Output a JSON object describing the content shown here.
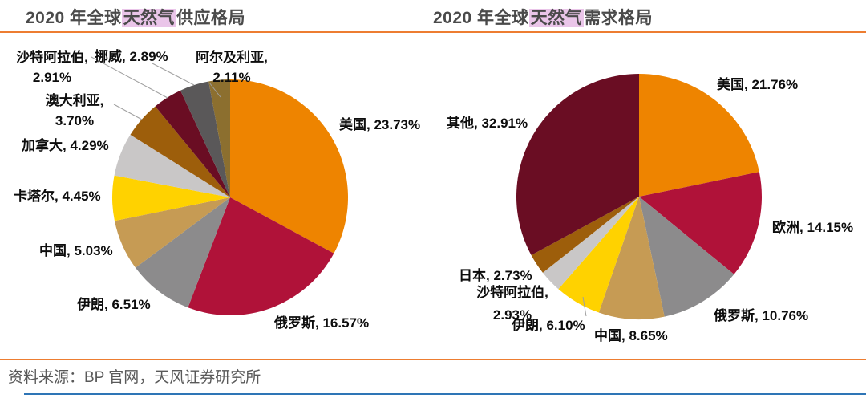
{
  "header": {
    "title_left": {
      "prefix": "2020 年全球",
      "highlight": "天然气",
      "suffix": "供应格局"
    },
    "title_right": {
      "prefix": "2020 年全球",
      "highlight": "天然气",
      "suffix": "需求格局"
    }
  },
  "footer": {
    "source_text": "资料来源：BP 官网，天风证券研究所"
  },
  "colors": {
    "accent_orange_rule": "#ed7d31",
    "accent_blue_rule": "#2e75b6",
    "title_text": "#4a4a4a",
    "title_highlight_bg": "#eac5e9",
    "footer_text": "#595959",
    "label_text": "#0d0d0d",
    "leader_line": "#a0a0a0"
  },
  "chart_data": [
    {
      "type": "pie",
      "title": "2020 年全球天然气供应格局",
      "unit": "%",
      "legend_position": "none",
      "labels_outside": true,
      "slices": [
        {
          "label": "美国",
          "value": 23.73,
          "color": "#ee8400"
        },
        {
          "label": "俄罗斯",
          "value": 16.57,
          "color": "#b01239"
        },
        {
          "label": "伊朗",
          "value": 6.51,
          "color": "#8c8b8c"
        },
        {
          "label": "中国",
          "value": 5.03,
          "color": "#c69b54"
        },
        {
          "label": "卡塔尔",
          "value": 4.45,
          "color": "#ffd200"
        },
        {
          "label": "加拿大",
          "value": 4.29,
          "color": "#c9c7c7"
        },
        {
          "label": "澳大利亚",
          "value": 3.7,
          "color": "#9d5e0b"
        },
        {
          "label": "沙特阿拉伯",
          "value": 2.91,
          "color": "#6a0d23"
        },
        {
          "label": "挪威",
          "value": 2.89,
          "color": "#5a5859"
        },
        {
          "label": "阿尔及利亚",
          "value": 2.11,
          "color": "#8c6f2f"
        }
      ],
      "display_labels": [
        "美国, 23.73%",
        "俄罗斯, 16.57%",
        "伊朗, 6.51%",
        "中国, 5.03%",
        "卡塔尔, 4.45%",
        "加拿大, 4.29%",
        "澳大利亚,\n3.70%",
        "沙特阿拉伯,\n2.91%",
        "挪威, 2.89%",
        "阿尔及利亚,\n2.11%"
      ]
    },
    {
      "type": "pie",
      "title": "2020 年全球天然气需求格局",
      "unit": "%",
      "legend_position": "none",
      "labels_outside": true,
      "slices": [
        {
          "label": "美国",
          "value": 21.76,
          "color": "#ee8400"
        },
        {
          "label": "欧洲",
          "value": 14.15,
          "color": "#b01239"
        },
        {
          "label": "俄罗斯",
          "value": 10.76,
          "color": "#8c8b8c"
        },
        {
          "label": "中国",
          "value": 8.65,
          "color": "#c69b54"
        },
        {
          "label": "伊朗",
          "value": 6.1,
          "color": "#ffd200"
        },
        {
          "label": "沙特阿拉伯",
          "value": 2.93,
          "color": "#c9c7c7"
        },
        {
          "label": "日本",
          "value": 2.73,
          "color": "#9d5e0b"
        },
        {
          "label": "其他",
          "value": 32.91,
          "color": "#6a0d23"
        }
      ],
      "display_labels": [
        "美国, 21.76%",
        "欧洲, 14.15%",
        "俄罗斯, 10.76%",
        "中国, 8.65%",
        "伊朗, 6.10%",
        "沙特阿拉伯,\n2.93%",
        "日本, 2.73%",
        "其他, 32.91%"
      ]
    }
  ]
}
